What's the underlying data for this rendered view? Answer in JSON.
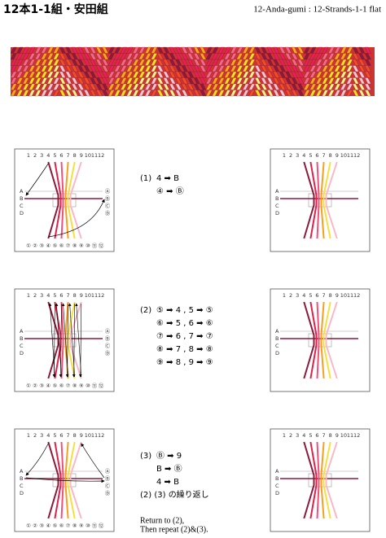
{
  "header": {
    "title_ja": "12本1-1組・安田組",
    "title_en": "12-Anda-gumi : 12-Strands-1-1 flat"
  },
  "board": {
    "top": [
      "1",
      "2",
      "3",
      "4",
      "5",
      "6",
      "7",
      "8",
      "9",
      "10",
      "11",
      "12"
    ],
    "left": [
      "A",
      "B",
      "C",
      "D"
    ],
    "bottom": [
      "①",
      "②",
      "③",
      "④",
      "⑤",
      "⑥",
      "⑦",
      "⑧",
      "⑨",
      "⑩",
      "⑪",
      "⑫"
    ],
    "right": [
      "Ⓐ",
      "Ⓑ",
      "Ⓒ",
      "Ⓓ"
    ]
  },
  "steps": [
    {
      "label": "(1)",
      "lines": [
        "4 ➡ B",
        "④ ➡ Ⓑ"
      ]
    },
    {
      "label": "(2)",
      "lines": [
        "⑤ ➡ 4 , 5 ➡ ⑤",
        "⑥ ➡ 5 , 6 ➡ ⑥",
        "⑦ ➡ 6 , 7 ➡ ⑦",
        "⑧ ➡ 7 , 8 ➡ ⑧",
        "⑨ ➡ 8 , 9 ➡ ⑨"
      ]
    },
    {
      "label": "(3)",
      "lines": [
        "Ⓑ ➡ 9",
        "B ➡ Ⓑ",
        "4 ➡ B"
      ],
      "notes": [
        "(2) (3) の繰り返し",
        "Return to (2),",
        "Then repeat (2)&(3)."
      ]
    }
  ]
}
